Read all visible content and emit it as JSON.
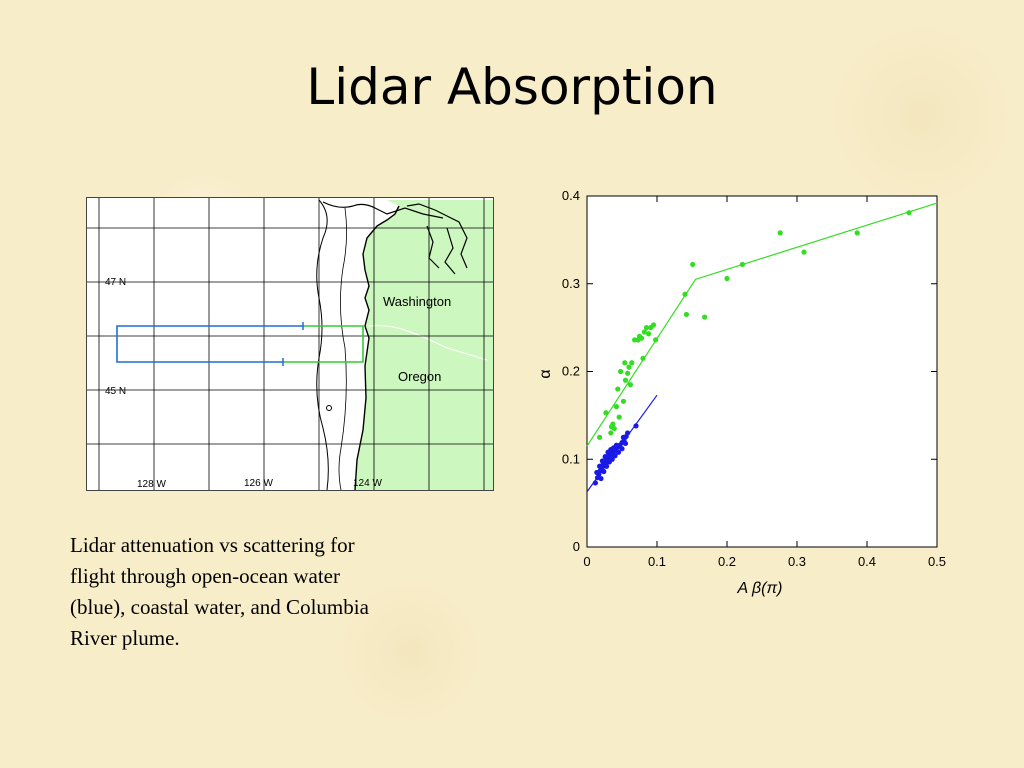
{
  "slide": {
    "title": "Lidar Absorption",
    "caption_lines": [
      "Lidar attenuation vs scattering for",
      "flight through open-ocean water",
      "(blue), coastal water, and Columbia",
      "River plume."
    ]
  },
  "map": {
    "lat_labels": [
      "47 N",
      "45 N"
    ],
    "lon_labels": [
      "128 W",
      "126 W",
      "124 W"
    ],
    "region_labels": [
      "Washington",
      "Oregon"
    ],
    "colors": {
      "land": "#ccf7be",
      "flight_blue": "#1f6fd6",
      "flight_green": "#33cc33"
    }
  },
  "chart_data": {
    "type": "scatter",
    "xlabel": "A β(π)",
    "ylabel": "α",
    "xlim": [
      0,
      0.5
    ],
    "ylim": [
      0,
      0.4
    ],
    "x_ticks": [
      "0",
      "0.1",
      "0.2",
      "0.3",
      "0.4",
      "0.5"
    ],
    "y_ticks": [
      "0",
      "0.1",
      "0.2",
      "0.3",
      "0.4"
    ],
    "grid": false,
    "series": [
      {
        "color": "#1a1ae6",
        "points": [
          [
            0.012,
            0.073
          ],
          [
            0.015,
            0.079
          ],
          [
            0.017,
            0.083
          ],
          [
            0.019,
            0.087
          ],
          [
            0.021,
            0.091
          ],
          [
            0.023,
            0.094
          ],
          [
            0.025,
            0.096
          ],
          [
            0.027,
            0.099
          ],
          [
            0.029,
            0.101
          ],
          [
            0.031,
            0.103
          ],
          [
            0.033,
            0.105
          ],
          [
            0.035,
            0.107
          ],
          [
            0.037,
            0.108
          ],
          [
            0.039,
            0.11
          ],
          [
            0.041,
            0.112
          ],
          [
            0.044,
            0.114
          ],
          [
            0.047,
            0.116
          ],
          [
            0.05,
            0.119
          ],
          [
            0.053,
            0.122
          ],
          [
            0.056,
            0.126
          ],
          [
            0.014,
            0.085
          ],
          [
            0.018,
            0.092
          ],
          [
            0.022,
            0.098
          ],
          [
            0.026,
            0.103
          ],
          [
            0.03,
            0.108
          ],
          [
            0.034,
            0.111
          ],
          [
            0.038,
            0.113
          ],
          [
            0.042,
            0.116
          ],
          [
            0.02,
            0.078
          ],
          [
            0.024,
            0.086
          ],
          [
            0.028,
            0.092
          ],
          [
            0.032,
            0.097
          ],
          [
            0.045,
            0.108
          ],
          [
            0.05,
            0.112
          ],
          [
            0.055,
            0.118
          ],
          [
            0.058,
            0.13
          ],
          [
            0.036,
            0.1
          ],
          [
            0.04,
            0.104
          ],
          [
            0.052,
            0.125
          ],
          [
            0.07,
            0.138
          ]
        ],
        "fit": [
          [
            0,
            0.063
          ],
          [
            0.1,
            0.173
          ]
        ]
      },
      {
        "color": "#33dd22",
        "points": [
          [
            0.018,
            0.125
          ],
          [
            0.027,
            0.153
          ],
          [
            0.034,
            0.13
          ],
          [
            0.035,
            0.137
          ],
          [
            0.037,
            0.14
          ],
          [
            0.039,
            0.135
          ],
          [
            0.042,
            0.16
          ],
          [
            0.044,
            0.18
          ],
          [
            0.046,
            0.148
          ],
          [
            0.048,
            0.2
          ],
          [
            0.052,
            0.166
          ],
          [
            0.054,
            0.21
          ],
          [
            0.055,
            0.19
          ],
          [
            0.058,
            0.198
          ],
          [
            0.06,
            0.205
          ],
          [
            0.062,
            0.185
          ],
          [
            0.064,
            0.21
          ],
          [
            0.068,
            0.236
          ],
          [
            0.073,
            0.236
          ],
          [
            0.075,
            0.24
          ],
          [
            0.078,
            0.238
          ],
          [
            0.08,
            0.215
          ],
          [
            0.082,
            0.245
          ],
          [
            0.085,
            0.25
          ],
          [
            0.088,
            0.243
          ],
          [
            0.091,
            0.25
          ],
          [
            0.095,
            0.253
          ],
          [
            0.098,
            0.236
          ],
          [
            0.14,
            0.288
          ],
          [
            0.142,
            0.265
          ],
          [
            0.151,
            0.322
          ],
          [
            0.168,
            0.262
          ],
          [
            0.2,
            0.306
          ],
          [
            0.222,
            0.322
          ],
          [
            0.276,
            0.358
          ],
          [
            0.31,
            0.336
          ],
          [
            0.386,
            0.358
          ],
          [
            0.46,
            0.381
          ]
        ],
        "fit": [
          [
            0,
            0.115
          ],
          [
            0.155,
            0.305
          ],
          [
            0.5,
            0.392
          ]
        ]
      }
    ]
  }
}
